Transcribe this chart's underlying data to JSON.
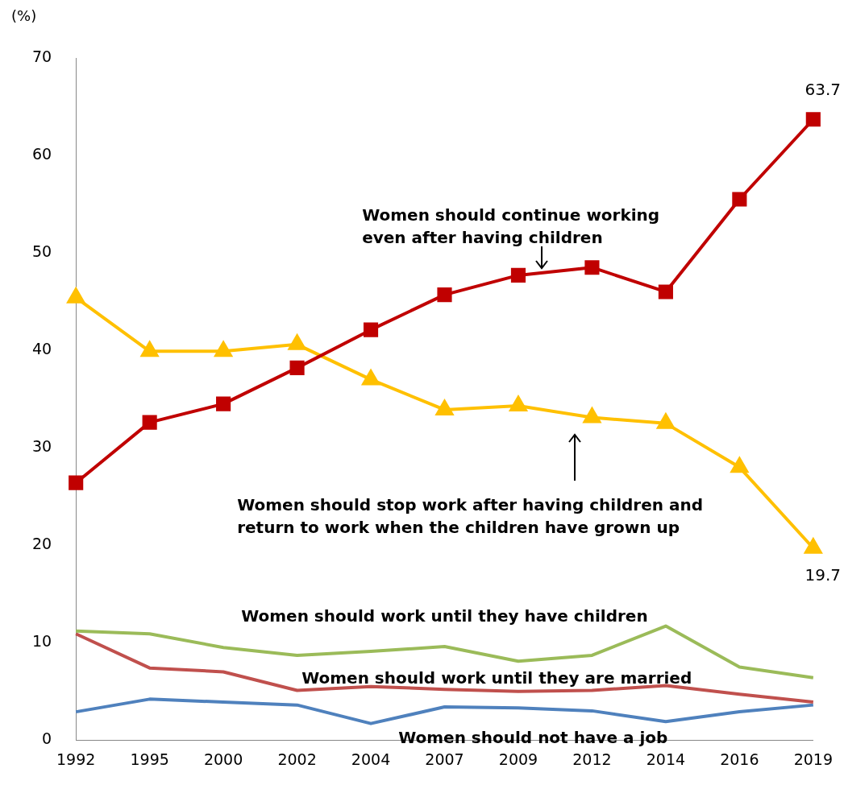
{
  "chart_data": {
    "type": "line",
    "ylabel": "(%)",
    "categories": [
      "1992",
      "1995",
      "2000",
      "2002",
      "2004",
      "2007",
      "2009",
      "2012",
      "2014",
      "2016",
      "2019"
    ],
    "ylim": [
      0,
      70
    ],
    "yticks": [
      0,
      10,
      20,
      30,
      40,
      50,
      60,
      70
    ],
    "grid": false,
    "legend": false,
    "series": [
      {
        "name": "Women should continue working even after having children",
        "color": "#c00000",
        "marker": "square",
        "values": [
          26.4,
          32.6,
          34.5,
          38.2,
          42.1,
          45.7,
          47.7,
          48.5,
          46.0,
          55.5,
          63.7
        ],
        "value_labels": [
          null,
          null,
          null,
          null,
          null,
          null,
          null,
          null,
          null,
          null,
          "63.7"
        ]
      },
      {
        "name": "Women should stop work after having children and return to work when the children have grown up",
        "color": "#ffc000",
        "marker": "triangle",
        "values": [
          45.4,
          39.9,
          39.9,
          40.6,
          37.0,
          33.9,
          34.3,
          33.1,
          32.5,
          28.0,
          19.7
        ],
        "value_labels": [
          null,
          null,
          null,
          null,
          null,
          null,
          null,
          null,
          null,
          null,
          "19.7"
        ]
      },
      {
        "name": "Women should work until they have children",
        "color": "#9bbb59",
        "marker": "none",
        "values": [
          11.2,
          10.9,
          9.5,
          8.7,
          9.1,
          9.6,
          8.1,
          8.7,
          11.7,
          7.5,
          6.4
        ]
      },
      {
        "name": "Women should work until they are married",
        "color": "#c0504d",
        "marker": "none",
        "values": [
          10.9,
          7.4,
          7.0,
          5.1,
          5.5,
          5.2,
          5.0,
          5.1,
          5.6,
          4.7,
          3.9
        ]
      },
      {
        "name": "Women should not have a job",
        "color": "#4f81bd",
        "marker": "none",
        "values": [
          2.9,
          4.2,
          3.9,
          3.6,
          1.7,
          3.4,
          3.3,
          3.0,
          1.9,
          2.9,
          3.6
        ]
      }
    ]
  }
}
